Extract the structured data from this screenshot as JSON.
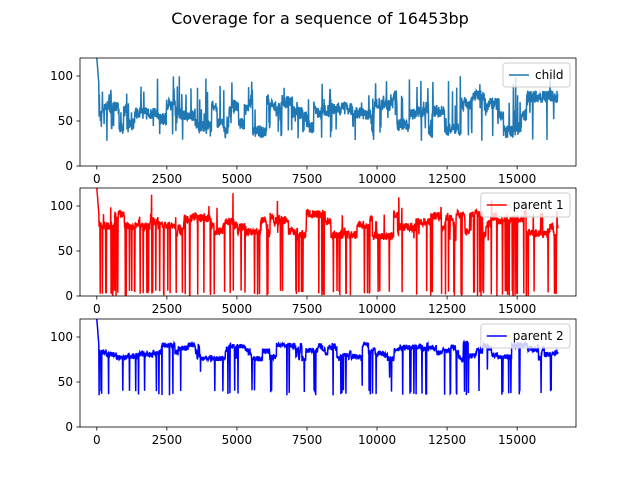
{
  "title": "Coverage for a sequence of 16453bp",
  "chart_data": [
    {
      "type": "line",
      "series": [
        {
          "name": "child",
          "color": "#1f77b4"
        }
      ],
      "xlim": [
        -600,
        17100
      ],
      "ylim": [
        0,
        120
      ],
      "xticks": [
        0,
        2500,
        5000,
        7500,
        10000,
        12500,
        15000
      ],
      "yticks": [
        0,
        50,
        100
      ],
      "legend_position": "top-right",
      "generator": {
        "n": 1650,
        "base": 58,
        "noise": 14,
        "drop_depth": 0,
        "drop_rate": 0,
        "start_peak": 120,
        "seed": 11,
        "spike_rate": 0.09,
        "spike_low": 28,
        "spike_high": 100
      }
    },
    {
      "type": "line",
      "series": [
        {
          "name": "parent 1",
          "color": "#ff0000"
        }
      ],
      "xlim": [
        -600,
        17100
      ],
      "ylim": [
        0,
        120
      ],
      "xticks": [
        0,
        2500,
        5000,
        7500,
        10000,
        12500,
        15000
      ],
      "yticks": [
        0,
        50,
        100
      ],
      "legend_position": "top-right",
      "generator": {
        "n": 1650,
        "base": 78,
        "noise": 9,
        "drop_depth": 0,
        "drop_rate": 0.07,
        "start_peak": 120,
        "seed": 23,
        "spike_rate": 0.02,
        "spike_low": 60,
        "spike_high": 115
      }
    },
    {
      "type": "line",
      "series": [
        {
          "name": "parent 2",
          "color": "#0000ff"
        }
      ],
      "xlim": [
        -600,
        17100
      ],
      "ylim": [
        0,
        120
      ],
      "xticks": [
        0,
        2500,
        5000,
        7500,
        10000,
        12500,
        15000
      ],
      "yticks": [
        0,
        50,
        100
      ],
      "legend_position": "top-right",
      "generator": {
        "n": 1650,
        "base": 84,
        "noise": 6,
        "drop_depth": 35,
        "drop_rate": 0.04,
        "start_peak": 120,
        "seed": 37,
        "spike_rate": 0.01,
        "spike_low": 35,
        "spike_high": 108
      }
    }
  ]
}
